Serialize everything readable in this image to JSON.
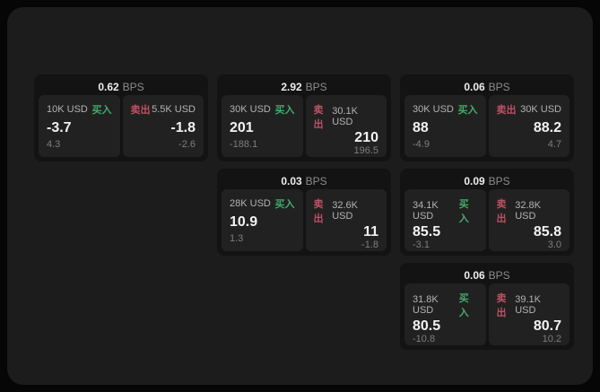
{
  "page": {
    "outer_background": "#060606",
    "panel_background": "#1c1c1c"
  },
  "colors": {
    "card_background": "#131313",
    "tile_background": "#212121",
    "buy_green": "#3fae68",
    "sell_red": "#c14f63",
    "price_white": "#f2f2f2",
    "size_label_gray": "#b3b3b3",
    "delta_gray": "#7e7e7e",
    "bps_unit_gray": "#8d8d8d"
  },
  "labels": {
    "bps": "BPS",
    "buy": "买入",
    "sell": "卖出"
  },
  "cards": [
    {
      "bps": "0.62",
      "buy": {
        "size": "10K USD",
        "price": "-3.7",
        "delta": "4.3"
      },
      "sell": {
        "size": "5.5K USD",
        "price": "-1.8",
        "delta": "-2.6"
      }
    },
    {
      "bps": "2.92",
      "buy": {
        "size": "30K USD",
        "price": "201",
        "delta": "-188.1"
      },
      "sell": {
        "size": "30.1K USD",
        "price": "210",
        "delta": "196.5"
      }
    },
    {
      "bps": "0.06",
      "buy": {
        "size": "30K USD",
        "price": "88",
        "delta": "-4.9"
      },
      "sell": {
        "size": "30K USD",
        "price": "88.2",
        "delta": "4.7"
      }
    },
    {
      "bps": "0.03",
      "buy": {
        "size": "28K USD",
        "price": "10.9",
        "delta": "1.3"
      },
      "sell": {
        "size": "32.6K USD",
        "price": "11",
        "delta": "-1.8"
      }
    },
    {
      "bps": "0.09",
      "buy": {
        "size": "34.1K USD",
        "price": "85.5",
        "delta": "-3.1"
      },
      "sell": {
        "size": "32.8K USD",
        "price": "85.8",
        "delta": "3.0"
      }
    },
    {
      "bps": "0.06",
      "buy": {
        "size": "31.8K USD",
        "price": "80.5",
        "delta": "-10.8"
      },
      "sell": {
        "size": "39.1K USD",
        "price": "80.7",
        "delta": "10.2"
      }
    }
  ]
}
